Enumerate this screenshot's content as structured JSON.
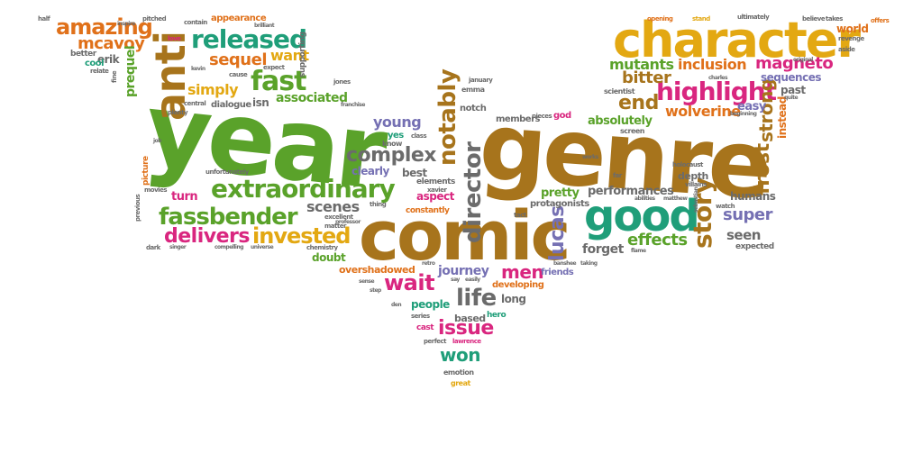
{
  "words": {
    "year": "year",
    "genre": "genre",
    "comic": "comic",
    "character": "character",
    "anti": "anti",
    "good": "good",
    "extraordinary": "extraordinary",
    "fassbender": "fassbender",
    "released": "released",
    "amazing": "amazing",
    "director": "director",
    "notably": "notably",
    "story": "story",
    "highlight": "highlight",
    "fast": "fast",
    "invested": "invested",
    "delivers": "delivers",
    "complex": "complex",
    "lucas": "lucas",
    "frost": "frost",
    "strong": "strong",
    "mutants": "mutants",
    "inclusion": "inclusion",
    "magneto": "magneto",
    "bitter": "bitter",
    "end": "end",
    "wolverine": "wolverine",
    "super": "super",
    "effects": "effects",
    "wait": "wait",
    "men": "men",
    "life": "life",
    "issue": "issue",
    "won": "won",
    "journey": "journey",
    "young": "young",
    "scenes": "scenes",
    "sequel": "sequel",
    "want": "want",
    "simply": "simply",
    "associated": "associated",
    "mcavoy": "mcavoy",
    "prequel": "prequel",
    "erik": "erik",
    "absolutely": "absolutely",
    "pretty": "pretty",
    "performances": "performances",
    "seen": "seen",
    "humans": "humans",
    "forget": "forget",
    "past": "past",
    "easy": "easy",
    "sequences": "sequences",
    "instead": "instead",
    "turn": "turn",
    "best": "best",
    "aspect": "aspect",
    "clearly": "clearly",
    "doubt": "doubt",
    "overshadowed": "overshadowed",
    "people": "people",
    "based": "based",
    "long": "long",
    "developing": "developing",
    "friends": "friends",
    "protagonists": "protagonists",
    "depth": "depth",
    "expected": "expected",
    "dialogue": "dialogue",
    "isn": "isn",
    "members": "members",
    "notch": "notch",
    "emma": "emma",
    "yes": "yes",
    "elements": "elements",
    "constantly": "constantly",
    "scientist": "scientist",
    "world": "world",
    "cool": "cool",
    "better": "better",
    "picture": "picture",
    "hero": "hero",
    "cast": "cast",
    "emotion": "emotion",
    "great": "great",
    "perfect": "perfect",
    "lawrence": "lawrence",
    "series": "series",
    "supporting": "supporting",
    "appearance": "appearance",
    "pitched": "pitched",
    "opening": "opening",
    "stand": "stand",
    "ultimately": "ultimately",
    "believe": "believe",
    "takes": "takes",
    "offers": "offers",
    "revenge": "revenge",
    "aside": "aside",
    "movies": "movies",
    "excellent": "excellent",
    "matter": "matter",
    "chemistry": "chemistry",
    "god": "god",
    "pieces": "pieces",
    "know": "know",
    "screen": "screen",
    "holocaust": "holocaust",
    "xavier": "xavier",
    "thing": "thing",
    "tact": "tact",
    "far": "far",
    "watch": "watch",
    "villains": "villains",
    "january": "january",
    "class": "class",
    "half": "half",
    "brilliant": "brilliant",
    "love": "love",
    "contain": "contain",
    "kevin": "kevin",
    "expect": "expect",
    "cause": "cause",
    "jones": "jones",
    "central": "central",
    "plenty": "plenty",
    "franchise": "franchise",
    "unfortunately": "unfortunately",
    "previous": "previous",
    "dark": "dark",
    "singer": "singer",
    "compelling": "compelling",
    "universe": "universe",
    "retro": "retro",
    "sense": "sense",
    "step": "step",
    "den": "den",
    "say": "say",
    "easily": "easily",
    "taking": "taking",
    "sebastian": "sebastian",
    "inspire": "inspire",
    "relate": "relate",
    "fine": "fine",
    "beginning": "beginning",
    "quite": "quite",
    "job": "job",
    "works": "works",
    "banshee": "banshee",
    "flame": "flame",
    "professor": "professor",
    "original": "original",
    "charles": "charles",
    "abilities": "abilities",
    "matthew": "matthew"
  }
}
